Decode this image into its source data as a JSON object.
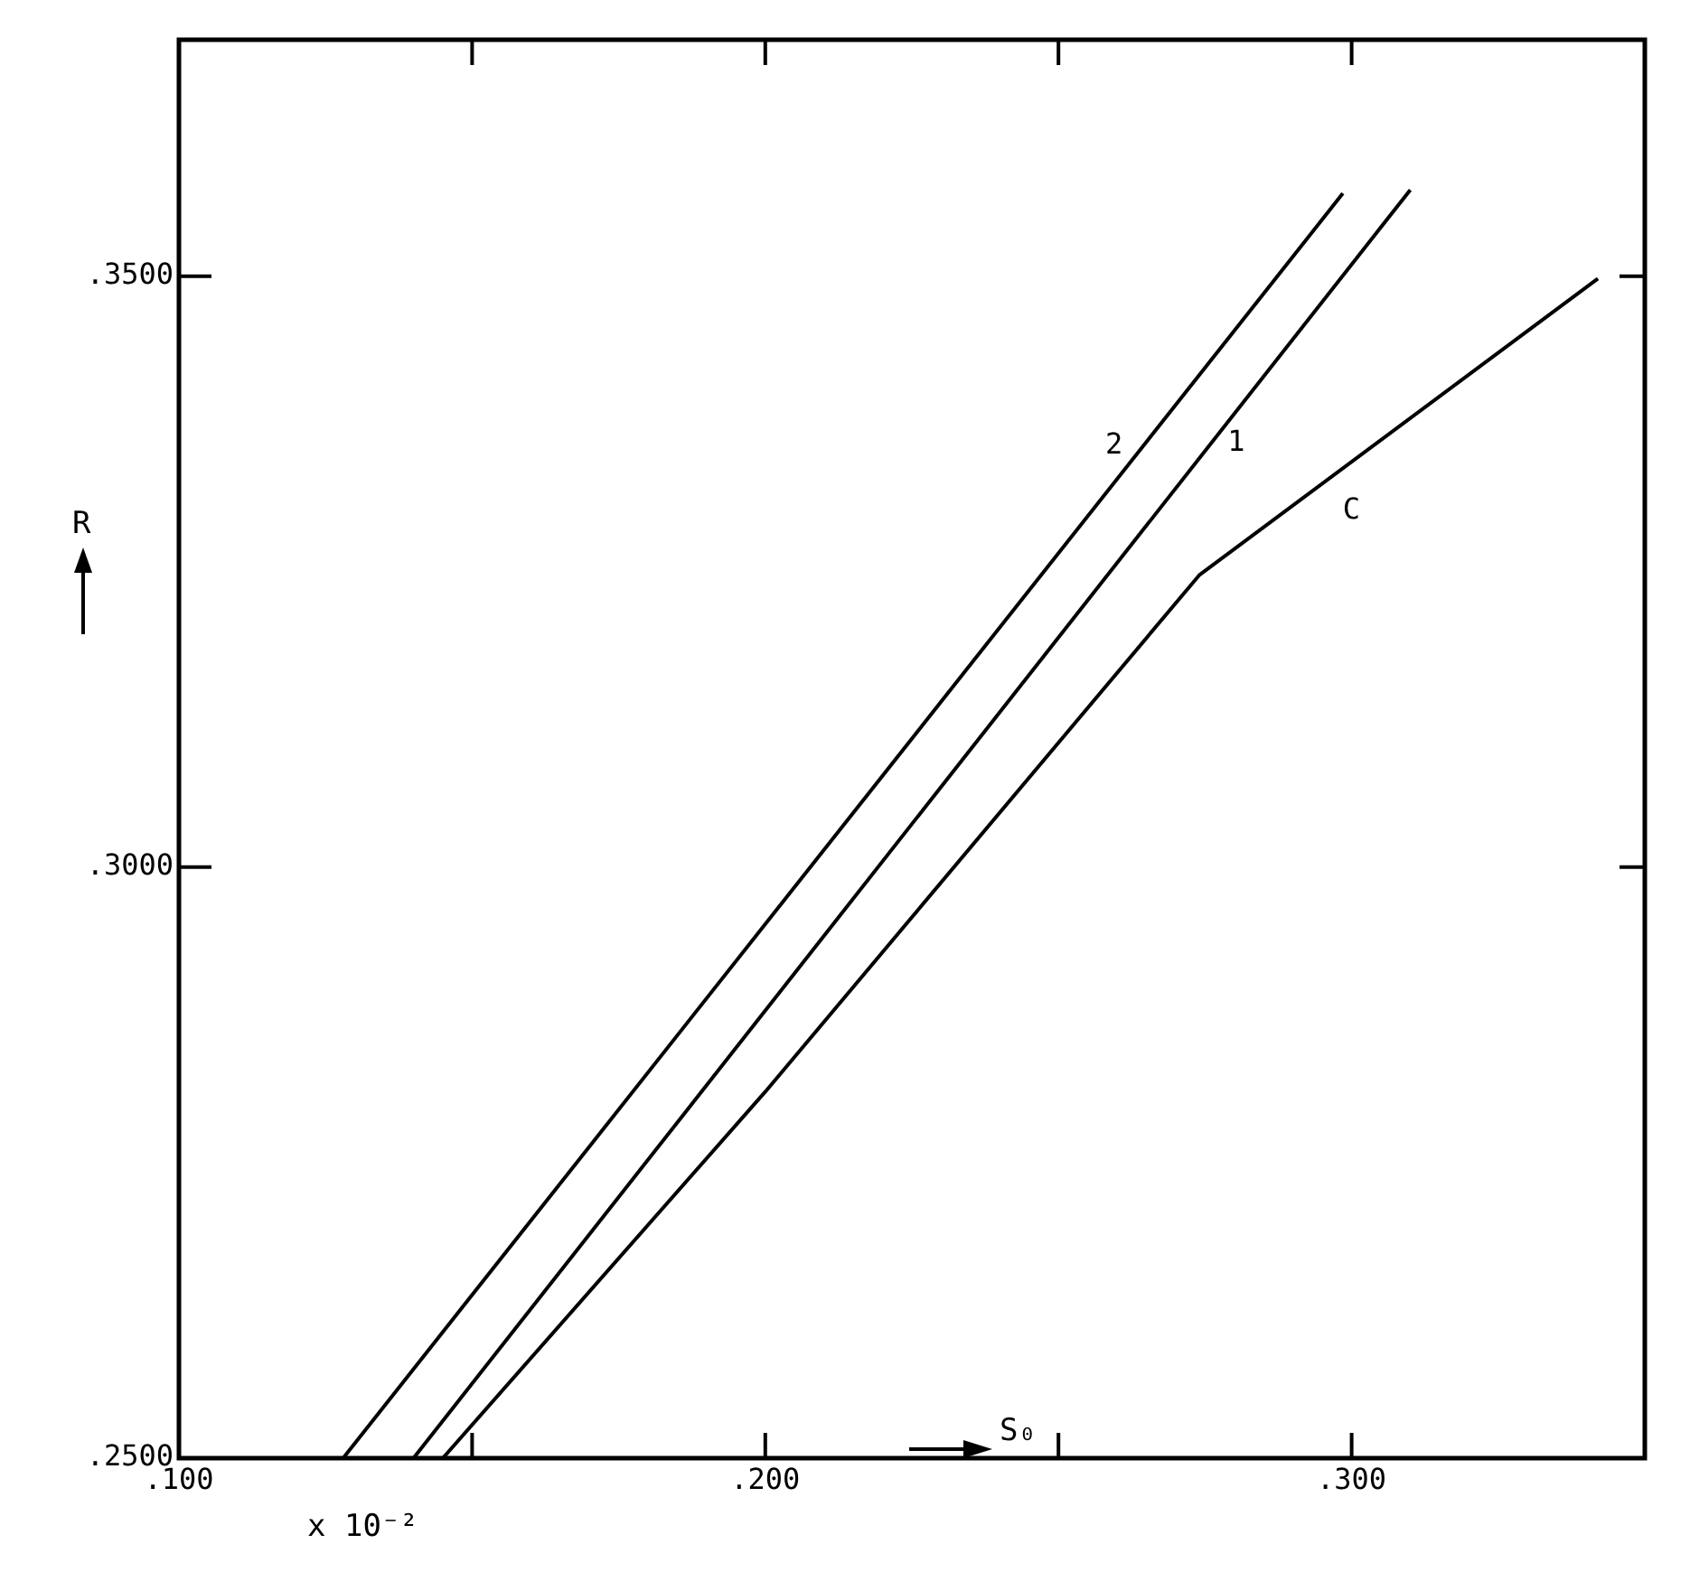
{
  "chart_data": {
    "type": "line",
    "xlabel": "S₀",
    "ylabel": "R",
    "xlim": [
      0.1,
      0.35
    ],
    "ylim": [
      0.25,
      0.37
    ],
    "xticks": [
      {
        "value": 0.1,
        "label": ".100"
      },
      {
        "value": 0.15,
        "label": null
      },
      {
        "value": 0.2,
        "label": ".200"
      },
      {
        "value": 0.25,
        "label": null
      },
      {
        "value": 0.3,
        "label": ".300"
      }
    ],
    "yticks": [
      {
        "value": 0.25,
        "label": ".2500"
      },
      {
        "value": 0.3,
        "label": ".3000"
      },
      {
        "value": 0.35,
        "label": ".3500"
      }
    ],
    "series": [
      {
        "name": "2",
        "color": "#000000",
        "x": [
          0.128,
          0.2985
        ],
        "values": [
          0.25,
          0.357
        ]
      },
      {
        "name": "1",
        "color": "#000000",
        "x": [
          0.14,
          0.31
        ],
        "values": [
          0.25,
          0.3573
        ]
      },
      {
        "name": "C",
        "color": "#000000",
        "x": [
          0.145,
          0.2,
          0.274,
          0.342
        ],
        "values": [
          0.25,
          0.281,
          0.3247,
          0.3498
        ]
      }
    ],
    "annotations": [
      "x 10⁻²"
    ],
    "grid": false,
    "legend": false,
    "marker": "none",
    "line_style": "solid"
  }
}
